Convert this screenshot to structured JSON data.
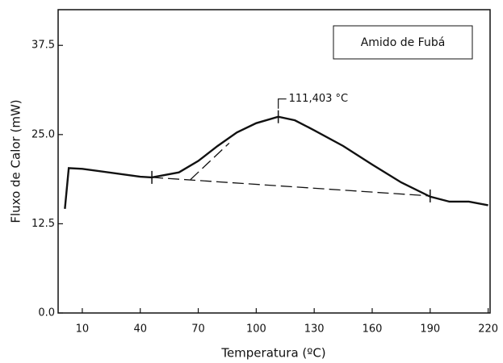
{
  "chart_data": {
    "type": "line",
    "xlabel": "Temperatura (ºC)",
    "ylabel": "Fluxo de Calor (mW)",
    "xlim": [
      -2.5,
      221
    ],
    "ylim": [
      0,
      42.5
    ],
    "xticks": [
      10,
      40,
      70,
      100,
      130,
      160,
      190,
      220
    ],
    "yticks": [
      {
        "value": 0,
        "label": "0.0"
      },
      12.5,
      {
        "value": 25,
        "label": "25.0"
      },
      37.5
    ],
    "legend": "upper right",
    "series": [
      {
        "name": "Amido de Fubá",
        "color": "#111111",
        "x": [
          1,
          3,
          10,
          40,
          46,
          60,
          70,
          80,
          90,
          100,
          111.403,
          120,
          130,
          145,
          160,
          175,
          190,
          200,
          210,
          220
        ],
        "values": [
          14.6,
          20.3,
          20.2,
          19.1,
          19.0,
          19.7,
          21.3,
          23.4,
          25.3,
          26.6,
          27.5,
          27.0,
          25.6,
          23.4,
          20.8,
          18.3,
          16.3,
          15.6,
          15.6,
          15.1
        ]
      },
      {
        "color": "#111111",
        "style": "dashed",
        "x": [
          46,
          190
        ],
        "values": [
          19.0,
          16.4
        ]
      },
      {
        "color": "#111111",
        "style": "dashed",
        "x": [
          66,
          86
        ],
        "values": [
          18.7,
          23.8
        ]
      }
    ],
    "markers": {
      "x": [
        46,
        111.403,
        190
      ],
      "y": [
        19.0,
        27.5,
        16.4
      ]
    },
    "annotations": [
      {
        "text": "111,403 °C",
        "x": 111.403,
        "y": 27.5
      }
    ]
  }
}
